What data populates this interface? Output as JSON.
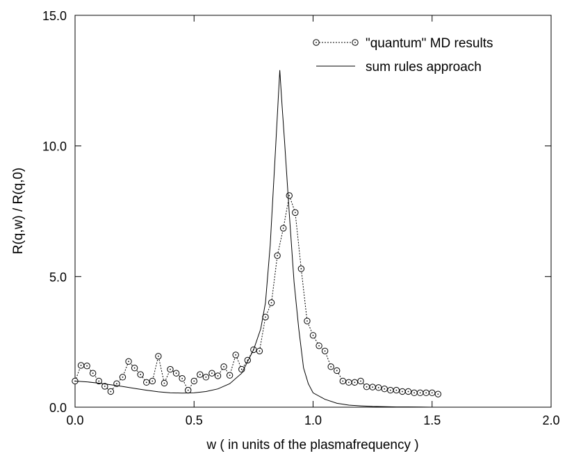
{
  "chart_data": {
    "type": "line",
    "xlabel": "w ( in units of the plasmafrequency )",
    "ylabel": "R(q,w) / R(q,0)",
    "xlim": [
      0.0,
      2.0
    ],
    "ylim": [
      0.0,
      15.0
    ],
    "x_ticks": [
      0.0,
      0.5,
      1.0,
      1.5,
      2.0
    ],
    "x_tick_labels": [
      "0.0",
      "0.5",
      "1.0",
      "1.5",
      "2.0"
    ],
    "y_ticks": [
      0.0,
      5.0,
      10.0,
      15.0
    ],
    "y_tick_labels": [
      "0.0",
      "5.0",
      "10.0",
      "15.0"
    ],
    "grid": false,
    "legend_position": "top-right",
    "series": [
      {
        "name": "\"quantum\" MD results",
        "style": "dotted-with-circle-markers",
        "color": "#000000",
        "x": [
          0.0,
          0.025,
          0.05,
          0.075,
          0.1,
          0.125,
          0.15,
          0.175,
          0.2,
          0.225,
          0.25,
          0.275,
          0.3,
          0.325,
          0.35,
          0.375,
          0.4,
          0.425,
          0.45,
          0.475,
          0.5,
          0.525,
          0.55,
          0.575,
          0.6,
          0.625,
          0.65,
          0.675,
          0.7,
          0.725,
          0.75,
          0.775,
          0.8,
          0.825,
          0.85,
          0.875,
          0.9,
          0.925,
          0.95,
          0.975,
          1.0,
          1.025,
          1.05,
          1.075,
          1.1,
          1.125,
          1.15,
          1.175,
          1.2,
          1.225,
          1.25,
          1.275,
          1.3,
          1.325,
          1.35,
          1.375,
          1.4,
          1.425,
          1.45,
          1.475,
          1.5,
          1.525
        ],
        "y": [
          1.0,
          1.6,
          1.58,
          1.3,
          1.0,
          0.8,
          0.6,
          0.9,
          1.15,
          1.75,
          1.5,
          1.25,
          0.95,
          1.0,
          1.95,
          0.92,
          1.45,
          1.3,
          1.1,
          0.65,
          1.0,
          1.25,
          1.15,
          1.3,
          1.2,
          1.55,
          1.22,
          2.0,
          1.45,
          1.8,
          2.2,
          2.15,
          3.45,
          4.0,
          5.8,
          6.85,
          8.1,
          7.45,
          5.3,
          3.3,
          2.75,
          2.35,
          2.15,
          1.55,
          1.4,
          1.0,
          0.95,
          0.95,
          1.0,
          0.78,
          0.77,
          0.75,
          0.7,
          0.65,
          0.65,
          0.6,
          0.6,
          0.55,
          0.55,
          0.55,
          0.55,
          0.5
        ]
      },
      {
        "name": "sum rules approach",
        "style": "solid",
        "color": "#000000",
        "x": [
          0.0,
          0.05,
          0.1,
          0.15,
          0.2,
          0.25,
          0.3,
          0.35,
          0.4,
          0.45,
          0.5,
          0.55,
          0.6,
          0.65,
          0.7,
          0.75,
          0.78,
          0.8,
          0.82,
          0.84,
          0.86,
          0.87,
          0.88,
          0.9,
          0.92,
          0.94,
          0.96,
          0.98,
          1.0,
          1.05,
          1.1,
          1.15,
          1.2,
          1.25,
          1.3,
          1.35,
          1.4,
          1.45,
          1.5,
          1.55
        ],
        "y": [
          1.0,
          0.97,
          0.92,
          0.86,
          0.79,
          0.72,
          0.65,
          0.59,
          0.55,
          0.54,
          0.55,
          0.6,
          0.7,
          0.9,
          1.3,
          2.2,
          3.0,
          4.0,
          6.2,
          9.5,
          12.9,
          11.5,
          10.2,
          7.4,
          4.8,
          3.0,
          1.5,
          0.9,
          0.55,
          0.3,
          0.15,
          0.08,
          0.05,
          0.03,
          0.02,
          0.01,
          0.01,
          0.005,
          0.0,
          0.0
        ]
      }
    ]
  }
}
